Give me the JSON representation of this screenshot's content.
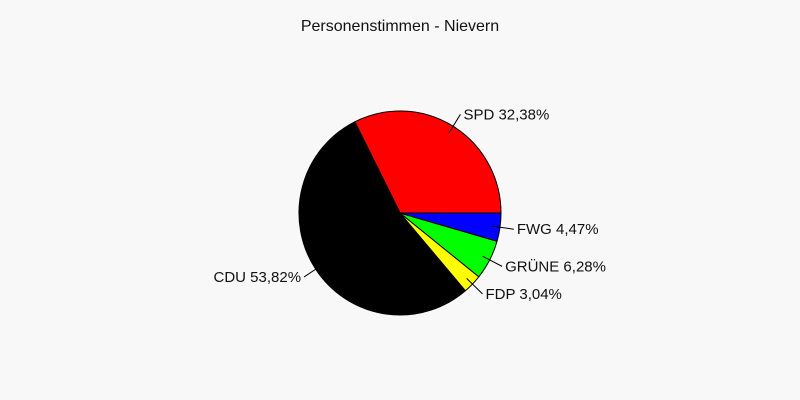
{
  "chart_data": {
    "type": "pie",
    "title": "Personenstimmen - Nievern",
    "start_angle_deg": 0,
    "direction": "counterclockwise",
    "slices": [
      {
        "label": "SPD 32,38%",
        "value": 32.38,
        "color": "#ff0000"
      },
      {
        "label": "CDU 53,82%",
        "value": 53.82,
        "color": "#000000"
      },
      {
        "label": "FDP 3,04%",
        "value": 3.04,
        "color": "#ffff00"
      },
      {
        "label": "GRÜNE 6,28%",
        "value": 6.28,
        "color": "#00ff00"
      },
      {
        "label": "FWG 4,47%",
        "value": 4.47,
        "color": "#0000ff"
      }
    ]
  }
}
